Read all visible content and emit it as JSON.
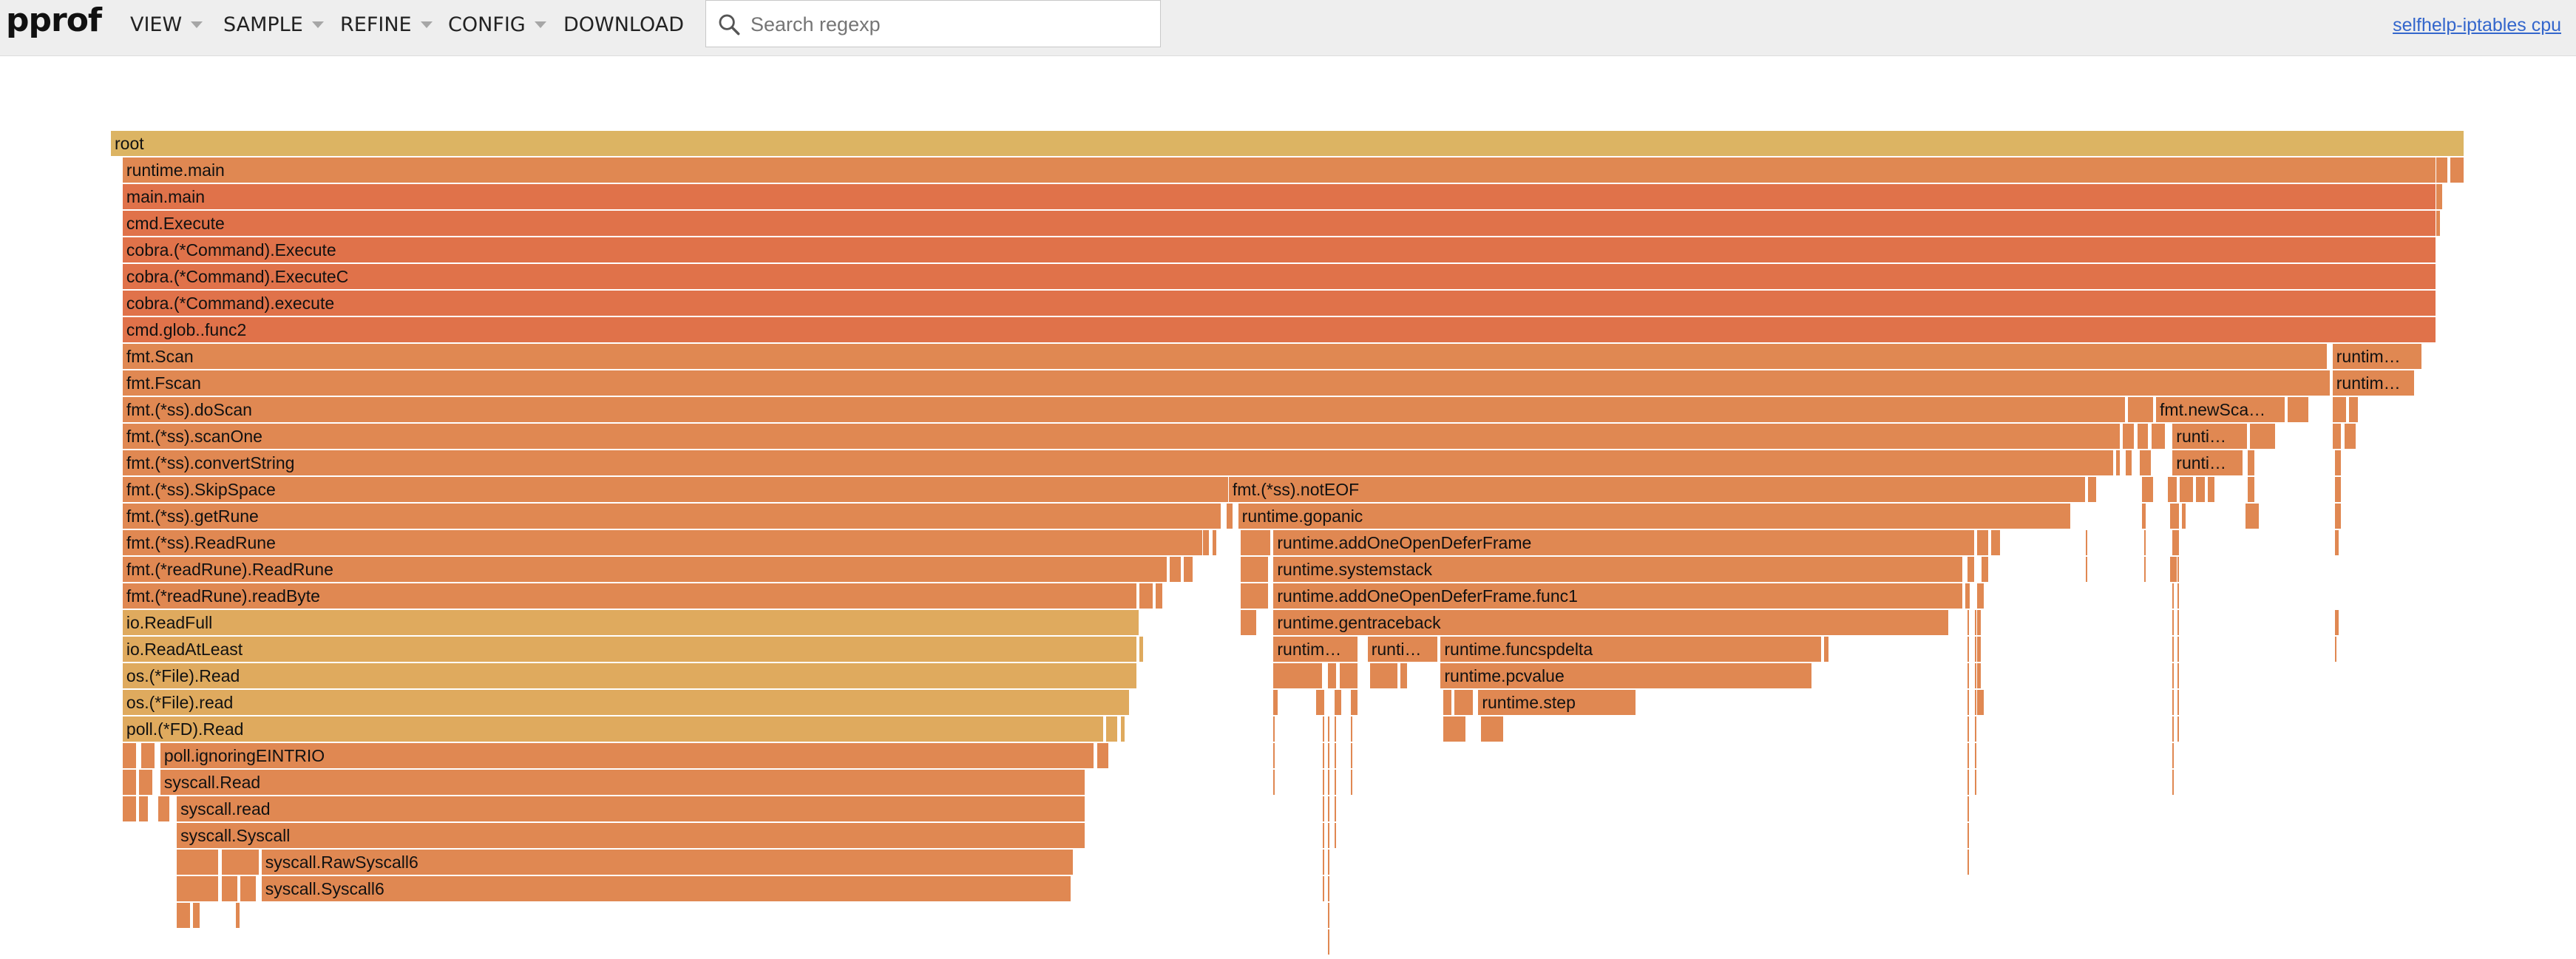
{
  "app": {
    "logo": "pprof"
  },
  "menu": [
    {
      "label": "VIEW",
      "caret": true
    },
    {
      "label": "SAMPLE",
      "caret": true
    },
    {
      "label": "REFINE",
      "caret": true
    },
    {
      "label": "CONFIG",
      "caret": true
    },
    {
      "label": "DOWNLOAD",
      "caret": false
    }
  ],
  "search": {
    "placeholder": "Search regexp",
    "value": ""
  },
  "profile": {
    "label": "selfhelp-iptables cpu"
  },
  "colors": {
    "root": "#dcb463",
    "hot": "#e0724a",
    "warm": "#e08852",
    "mid": "#e29a5a",
    "gold": "#dfaa5e"
  },
  "flamegraph": {
    "frames": [
      {
        "name": "root",
        "depth": 0,
        "start": 0.0,
        "width": 1.0,
        "color": "root"
      },
      {
        "name": "runtime.main",
        "depth": 1,
        "start": 0.005,
        "width": 0.983,
        "color": "warm"
      },
      {
        "name": "main.main",
        "depth": 2,
        "start": 0.005,
        "width": 0.983,
        "color": "hot"
      },
      {
        "name": "cmd.Execute",
        "depth": 3,
        "start": 0.005,
        "width": 0.983,
        "color": "hot"
      },
      {
        "name": "cobra.(*Command).Execute",
        "depth": 4,
        "start": 0.005,
        "width": 0.983,
        "color": "hot"
      },
      {
        "name": "cobra.(*Command).ExecuteC",
        "depth": 5,
        "start": 0.005,
        "width": 0.983,
        "color": "hot"
      },
      {
        "name": "cobra.(*Command).execute",
        "depth": 6,
        "start": 0.005,
        "width": 0.983,
        "color": "hot"
      },
      {
        "name": "cmd.glob..func2",
        "depth": 7,
        "start": 0.005,
        "width": 0.983,
        "color": "hot"
      },
      {
        "name": "fmt.Scan",
        "depth": 8,
        "start": 0.005,
        "width": 0.937,
        "color": "warm"
      },
      {
        "name": "runtim…",
        "depth": 8,
        "start": 0.944,
        "width": 0.038,
        "color": "warm"
      },
      {
        "name": "fmt.Fscan",
        "depth": 9,
        "start": 0.005,
        "width": 0.937,
        "color": "warm"
      },
      {
        "name": "runtim…",
        "depth": 9,
        "start": 0.944,
        "width": 0.035,
        "color": "warm"
      },
      {
        "name": "fmt.(*ss).doScan",
        "depth": 10,
        "start": 0.005,
        "width": 0.851,
        "color": "warm"
      },
      {
        "name": "fmt.newSca…",
        "depth": 10,
        "start": 0.869,
        "width": 0.055,
        "color": "warm"
      },
      {
        "name": "fmt.(*ss).scanOne",
        "depth": 11,
        "start": 0.005,
        "width": 0.849,
        "color": "warm"
      },
      {
        "name": "runti…",
        "depth": 11,
        "start": 0.876,
        "width": 0.032,
        "color": "warm"
      },
      {
        "name": "fmt.(*ss).convertString",
        "depth": 12,
        "start": 0.005,
        "width": 0.846,
        "color": "warm"
      },
      {
        "name": "runti…",
        "depth": 12,
        "start": 0.876,
        "width": 0.03,
        "color": "warm"
      },
      {
        "name": "fmt.(*ss).SkipSpace",
        "depth": 13,
        "start": 0.005,
        "width": 0.47,
        "color": "warm"
      },
      {
        "name": "fmt.(*ss).notEOF",
        "depth": 13,
        "start": 0.475,
        "width": 0.364,
        "color": "warm"
      },
      {
        "name": "fmt.(*ss).getRune",
        "depth": 14,
        "start": 0.005,
        "width": 0.467,
        "color": "warm"
      },
      {
        "name": "runtime.gopanic",
        "depth": 14,
        "start": 0.479,
        "width": 0.354,
        "color": "warm"
      },
      {
        "name": "fmt.(*ss).ReadRune",
        "depth": 15,
        "start": 0.005,
        "width": 0.459,
        "color": "warm"
      },
      {
        "name": "runtime.addOneOpenDeferFrame",
        "depth": 15,
        "start": 0.494,
        "width": 0.298,
        "color": "warm"
      },
      {
        "name": "fmt.(*readRune).ReadRune",
        "depth": 16,
        "start": 0.005,
        "width": 0.444,
        "color": "warm"
      },
      {
        "name": "runtime.systemstack",
        "depth": 16,
        "start": 0.494,
        "width": 0.293,
        "color": "warm"
      },
      {
        "name": "fmt.(*readRune).readByte",
        "depth": 17,
        "start": 0.005,
        "width": 0.431,
        "color": "warm"
      },
      {
        "name": "runtime.addOneOpenDeferFrame.func1",
        "depth": 17,
        "start": 0.494,
        "width": 0.293,
        "color": "warm"
      },
      {
        "name": "io.ReadFull",
        "depth": 18,
        "start": 0.005,
        "width": 0.432,
        "color": "gold"
      },
      {
        "name": "runtime.gentraceback",
        "depth": 18,
        "start": 0.494,
        "width": 0.287,
        "color": "warm"
      },
      {
        "name": "io.ReadAtLeast",
        "depth": 19,
        "start": 0.005,
        "width": 0.431,
        "color": "gold"
      },
      {
        "name": "runtim…",
        "depth": 19,
        "start": 0.494,
        "width": 0.036,
        "color": "warm"
      },
      {
        "name": "runti…",
        "depth": 19,
        "start": 0.534,
        "width": 0.03,
        "color": "warm"
      },
      {
        "name": "runtime.funcspdelta",
        "depth": 19,
        "start": 0.565,
        "width": 0.162,
        "color": "warm"
      },
      {
        "name": "os.(*File).Read",
        "depth": 20,
        "start": 0.005,
        "width": 0.431,
        "color": "gold"
      },
      {
        "name": "runtime.pcvalue",
        "depth": 20,
        "start": 0.565,
        "width": 0.158,
        "color": "warm"
      },
      {
        "name": "os.(*File).read",
        "depth": 21,
        "start": 0.005,
        "width": 0.428,
        "color": "gold"
      },
      {
        "name": "runtime.step",
        "depth": 21,
        "start": 0.581,
        "width": 0.067,
        "color": "warm"
      },
      {
        "name": "poll.(*FD).Read",
        "depth": 22,
        "start": 0.005,
        "width": 0.417,
        "color": "gold"
      },
      {
        "name": "poll.ignoringEINTRIO",
        "depth": 23,
        "start": 0.021,
        "width": 0.397,
        "color": "warm"
      },
      {
        "name": "syscall.Read",
        "depth": 24,
        "start": 0.021,
        "width": 0.393,
        "color": "warm"
      },
      {
        "name": "syscall.read",
        "depth": 25,
        "start": 0.028,
        "width": 0.386,
        "color": "warm"
      },
      {
        "name": "syscall.Syscall",
        "depth": 26,
        "start": 0.028,
        "width": 0.386,
        "color": "warm"
      },
      {
        "name": "syscall.RawSyscall6",
        "depth": 27,
        "start": 0.064,
        "width": 0.345,
        "color": "warm"
      },
      {
        "name": "syscall.Syscall6",
        "depth": 28,
        "start": 0.064,
        "width": 0.344,
        "color": "warm"
      }
    ],
    "slivers": [
      {
        "depth": 1,
        "start": 0.988,
        "width": 0.005,
        "color": "warm"
      },
      {
        "depth": 1,
        "start": 0.994,
        "width": 0.006,
        "color": "warm"
      },
      {
        "depth": 2,
        "start": 0.988,
        "width": 0.003,
        "color": "warm"
      },
      {
        "depth": 3,
        "start": 0.988,
        "width": 0.002,
        "color": "warm"
      },
      {
        "depth": 9,
        "start": 0.94,
        "width": 0.003,
        "color": "warm"
      },
      {
        "depth": 10,
        "start": 0.857,
        "width": 0.011,
        "color": "warm"
      },
      {
        "depth": 10,
        "start": 0.925,
        "width": 0.009,
        "color": "warm"
      },
      {
        "depth": 10,
        "start": 0.944,
        "width": 0.006,
        "color": "warm"
      },
      {
        "depth": 10,
        "start": 0.951,
        "width": 0.004,
        "color": "warm"
      },
      {
        "depth": 11,
        "start": 0.855,
        "width": 0.005,
        "color": "warm"
      },
      {
        "depth": 11,
        "start": 0.861,
        "width": 0.005,
        "color": "warm"
      },
      {
        "depth": 11,
        "start": 0.867,
        "width": 0.006,
        "color": "warm"
      },
      {
        "depth": 11,
        "start": 0.909,
        "width": 0.011,
        "color": "warm"
      },
      {
        "depth": 11,
        "start": 0.944,
        "width": 0.004,
        "color": "warm"
      },
      {
        "depth": 11,
        "start": 0.949,
        "width": 0.005,
        "color": "warm"
      },
      {
        "depth": 12,
        "start": 0.852,
        "width": 0.002,
        "color": "warm"
      },
      {
        "depth": 12,
        "start": 0.856,
        "width": 0.003,
        "color": "warm"
      },
      {
        "depth": 12,
        "start": 0.862,
        "width": 0.005,
        "color": "warm"
      },
      {
        "depth": 12,
        "start": 0.908,
        "width": 0.003,
        "color": "warm"
      },
      {
        "depth": 12,
        "start": 0.945,
        "width": 0.003,
        "color": "warm"
      },
      {
        "depth": 13,
        "start": 0.84,
        "width": 0.004,
        "color": "warm"
      },
      {
        "depth": 13,
        "start": 0.863,
        "width": 0.005,
        "color": "warm"
      },
      {
        "depth": 13,
        "start": 0.874,
        "width": 0.004,
        "color": "warm"
      },
      {
        "depth": 13,
        "start": 0.879,
        "width": 0.006,
        "color": "warm"
      },
      {
        "depth": 13,
        "start": 0.886,
        "width": 0.004,
        "color": "warm"
      },
      {
        "depth": 13,
        "start": 0.891,
        "width": 0.003,
        "color": "warm"
      },
      {
        "depth": 13,
        "start": 0.908,
        "width": 0.003,
        "color": "warm"
      },
      {
        "depth": 13,
        "start": 0.945,
        "width": 0.003,
        "color": "warm"
      },
      {
        "depth": 14,
        "start": 0.474,
        "width": 0.003,
        "color": "warm"
      },
      {
        "depth": 14,
        "start": 0.863,
        "width": 0.002,
        "color": "warm"
      },
      {
        "depth": 14,
        "start": 0.875,
        "width": 0.004,
        "color": "warm"
      },
      {
        "depth": 14,
        "start": 0.88,
        "width": 0.002,
        "color": "warm"
      },
      {
        "depth": 14,
        "start": 0.907,
        "width": 0.006,
        "color": "warm"
      },
      {
        "depth": 14,
        "start": 0.945,
        "width": 0.003,
        "color": "warm"
      },
      {
        "depth": 15,
        "start": 0.464,
        "width": 0.003,
        "color": "warm"
      },
      {
        "depth": 15,
        "start": 0.468,
        "width": 0.002,
        "color": "warm"
      },
      {
        "depth": 15,
        "start": 0.48,
        "width": 0.013,
        "color": "warm"
      },
      {
        "depth": 15,
        "start": 0.793,
        "width": 0.005,
        "color": "warm"
      },
      {
        "depth": 15,
        "start": 0.799,
        "width": 0.004,
        "color": "warm"
      },
      {
        "depth": 15,
        "start": 0.876,
        "width": 0.003,
        "color": "warm"
      },
      {
        "depth": 15,
        "start": 0.945,
        "width": 0.002,
        "color": "warm"
      },
      {
        "depth": 16,
        "start": 0.45,
        "width": 0.005,
        "color": "warm"
      },
      {
        "depth": 16,
        "start": 0.456,
        "width": 0.004,
        "color": "warm"
      },
      {
        "depth": 16,
        "start": 0.48,
        "width": 0.012,
        "color": "warm"
      },
      {
        "depth": 16,
        "start": 0.789,
        "width": 0.003,
        "color": "warm"
      },
      {
        "depth": 16,
        "start": 0.795,
        "width": 0.003,
        "color": "warm"
      },
      {
        "depth": 16,
        "start": 0.875,
        "width": 0.003,
        "color": "warm"
      },
      {
        "depth": 17,
        "start": 0.437,
        "width": 0.006,
        "color": "warm"
      },
      {
        "depth": 17,
        "start": 0.444,
        "width": 0.003,
        "color": "warm"
      },
      {
        "depth": 17,
        "start": 0.48,
        "width": 0.012,
        "color": "warm"
      },
      {
        "depth": 17,
        "start": 0.788,
        "width": 0.002,
        "color": "warm"
      },
      {
        "depth": 17,
        "start": 0.793,
        "width": 0.003,
        "color": "warm"
      },
      {
        "depth": 18,
        "start": 0.48,
        "width": 0.007,
        "color": "warm"
      },
      {
        "depth": 18,
        "start": 0.793,
        "width": 0.002,
        "color": "warm"
      },
      {
        "depth": 18,
        "start": 0.945,
        "width": 0.002,
        "color": "warm"
      },
      {
        "depth": 19,
        "start": 0.437,
        "width": 0.002,
        "color": "gold"
      },
      {
        "depth": 19,
        "start": 0.728,
        "width": 0.002,
        "color": "warm"
      },
      {
        "depth": 19,
        "start": 0.793,
        "width": 0.002,
        "color": "warm"
      },
      {
        "depth": 20,
        "start": 0.494,
        "width": 0.021,
        "color": "warm"
      },
      {
        "depth": 20,
        "start": 0.517,
        "width": 0.004,
        "color": "warm"
      },
      {
        "depth": 20,
        "start": 0.522,
        "width": 0.008,
        "color": "warm"
      },
      {
        "depth": 20,
        "start": 0.535,
        "width": 0.012,
        "color": "warm"
      },
      {
        "depth": 20,
        "start": 0.548,
        "width": 0.003,
        "color": "warm"
      },
      {
        "depth": 20,
        "start": 0.793,
        "width": 0.002,
        "color": "warm"
      },
      {
        "depth": 21,
        "start": 0.494,
        "width": 0.002,
        "color": "warm"
      },
      {
        "depth": 21,
        "start": 0.512,
        "width": 0.004,
        "color": "warm"
      },
      {
        "depth": 21,
        "start": 0.52,
        "width": 0.003,
        "color": "warm"
      },
      {
        "depth": 21,
        "start": 0.527,
        "width": 0.003,
        "color": "warm"
      },
      {
        "depth": 21,
        "start": 0.566,
        "width": 0.004,
        "color": "warm"
      },
      {
        "depth": 21,
        "start": 0.571,
        "width": 0.008,
        "color": "warm"
      },
      {
        "depth": 21,
        "start": 0.793,
        "width": 0.003,
        "color": "warm"
      },
      {
        "depth": 22,
        "start": 0.423,
        "width": 0.005,
        "color": "gold"
      },
      {
        "depth": 22,
        "start": 0.429,
        "width": 0.002,
        "color": "gold"
      },
      {
        "depth": 22,
        "start": 0.566,
        "width": 0.01,
        "color": "warm"
      },
      {
        "depth": 22,
        "start": 0.582,
        "width": 0.01,
        "color": "warm"
      },
      {
        "depth": 23,
        "start": 0.005,
        "width": 0.006,
        "color": "warm"
      },
      {
        "depth": 23,
        "start": 0.013,
        "width": 0.006,
        "color": "warm"
      },
      {
        "depth": 23,
        "start": 0.419,
        "width": 0.005,
        "color": "warm"
      },
      {
        "depth": 24,
        "start": 0.005,
        "width": 0.006,
        "color": "warm"
      },
      {
        "depth": 24,
        "start": 0.012,
        "width": 0.006,
        "color": "warm"
      },
      {
        "depth": 25,
        "start": 0.005,
        "width": 0.006,
        "color": "warm"
      },
      {
        "depth": 25,
        "start": 0.012,
        "width": 0.004,
        "color": "warm"
      },
      {
        "depth": 25,
        "start": 0.02,
        "width": 0.005,
        "color": "warm"
      },
      {
        "depth": 27,
        "start": 0.028,
        "width": 0.018,
        "color": "warm"
      },
      {
        "depth": 27,
        "start": 0.047,
        "width": 0.016,
        "color": "warm"
      },
      {
        "depth": 28,
        "start": 0.028,
        "width": 0.018,
        "color": "warm"
      },
      {
        "depth": 28,
        "start": 0.047,
        "width": 0.007,
        "color": "warm"
      },
      {
        "depth": 28,
        "start": 0.055,
        "width": 0.007,
        "color": "warm"
      },
      {
        "depth": 29,
        "start": 0.028,
        "width": 0.006,
        "color": "warm"
      },
      {
        "depth": 29,
        "start": 0.035,
        "width": 0.003,
        "color": "warm"
      },
      {
        "depth": 29,
        "start": 0.053,
        "width": 0.002,
        "color": "warm"
      }
    ],
    "thin_lines": [
      {
        "start": 0.494,
        "from_depth": 22,
        "to_depth": 24
      },
      {
        "start": 0.515,
        "from_depth": 22,
        "to_depth": 28
      },
      {
        "start": 0.517,
        "from_depth": 22,
        "to_depth": 30
      },
      {
        "start": 0.52,
        "from_depth": 22,
        "to_depth": 26
      },
      {
        "start": 0.527,
        "from_depth": 22,
        "to_depth": 24
      },
      {
        "start": 0.789,
        "from_depth": 18,
        "to_depth": 27
      },
      {
        "start": 0.792,
        "from_depth": 18,
        "to_depth": 24
      },
      {
        "start": 0.839,
        "from_depth": 15,
        "to_depth": 16
      },
      {
        "start": 0.864,
        "from_depth": 15,
        "to_depth": 16
      },
      {
        "start": 0.876,
        "from_depth": 16,
        "to_depth": 24
      },
      {
        "start": 0.878,
        "from_depth": 16,
        "to_depth": 22
      },
      {
        "start": 0.945,
        "from_depth": 19,
        "to_depth": 19
      }
    ]
  }
}
